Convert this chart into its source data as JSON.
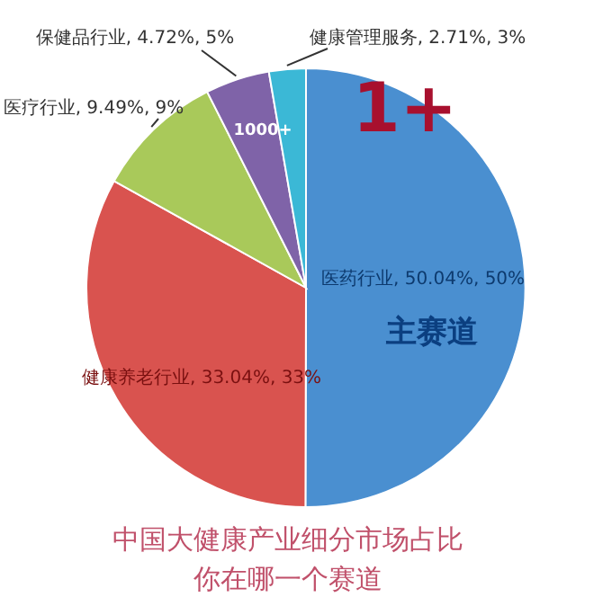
{
  "chart_data": {
    "type": "pie",
    "title": "中国大健康产业细分市场占比",
    "subtitle": "你在哪一个赛道",
    "categories": [
      "医药行业",
      "健康养老行业",
      "医疗行业",
      "保健品行业",
      "健康管理服务"
    ],
    "values": [
      50.04,
      33.04,
      9.49,
      4.72,
      2.71
    ],
    "value_labels": [
      "50.04%, 50%",
      "33.04%, 33%",
      "9.49%, 9%",
      "4.72%, 5%",
      "2.71%, 3%"
    ],
    "colors": [
      "#4a8fd0",
      "#d9534f",
      "#a9c95a",
      "#7f63a8",
      "#3bb8d6"
    ],
    "annotations": [
      "1+",
      "1000+",
      "主赛道"
    ]
  }
}
